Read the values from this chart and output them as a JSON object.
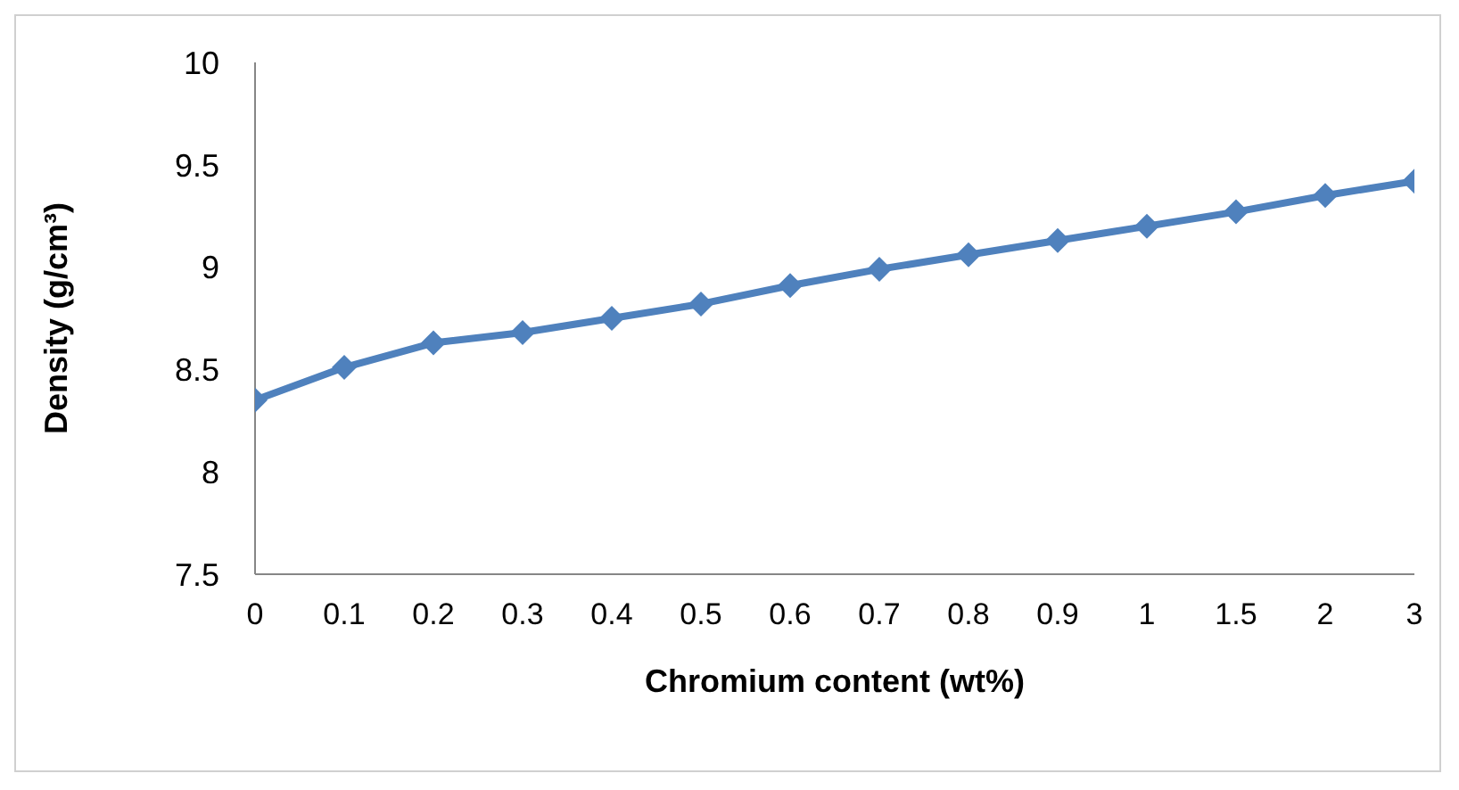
{
  "chart_data": {
    "type": "line",
    "xlabel": "Chromium content (wt%)",
    "ylabel": "Density (g/cm³)",
    "categories": [
      "0",
      "0.1",
      "0.2",
      "0.3",
      "0.4",
      "0.5",
      "0.6",
      "0.7",
      "0.8",
      "0.9",
      "1",
      "1.5",
      "2",
      "3"
    ],
    "series": [
      {
        "color": "#4f81bd",
        "values": [
          8.35,
          8.51,
          8.63,
          8.68,
          8.75,
          8.82,
          8.91,
          8.99,
          9.06,
          9.13,
          9.2,
          9.27,
          9.35,
          9.42
        ]
      }
    ],
    "ylim": [
      7.5,
      10
    ],
    "yticks": [
      7.5,
      8,
      8.5,
      9,
      9.5,
      10
    ],
    "grid": false,
    "legend": false,
    "marker": "diamond",
    "line_style": "solid"
  }
}
